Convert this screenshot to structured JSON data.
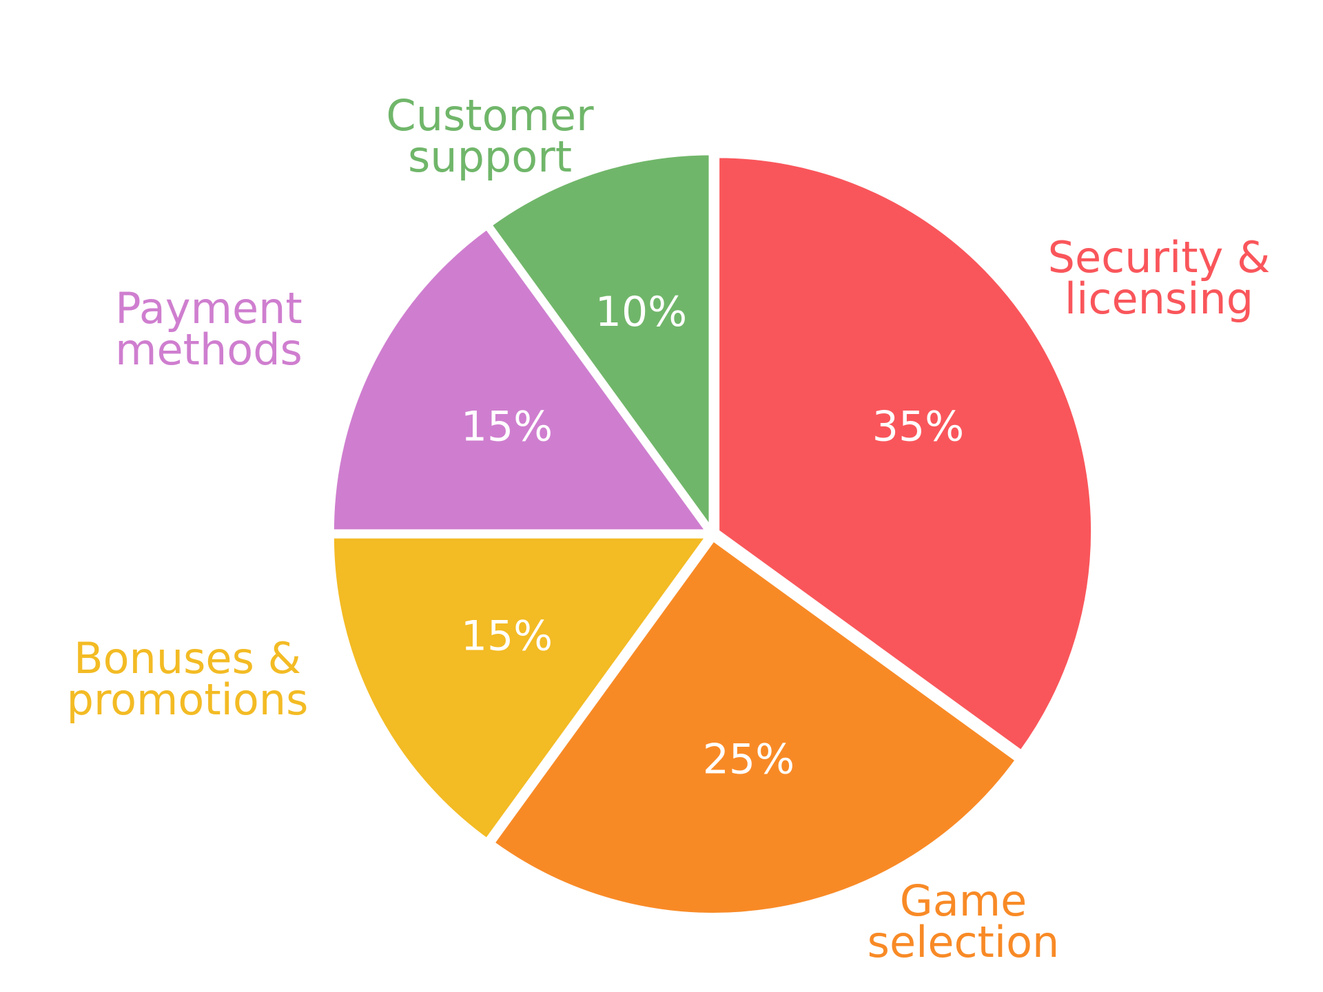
{
  "chart_data": {
    "type": "pie",
    "categories": [
      "Security & licensing",
      "Game selection",
      "Bonuses & promotions",
      "Payment methods",
      "Customer support"
    ],
    "values": [
      35,
      25,
      15,
      15,
      10
    ],
    "value_labels": [
      "35%",
      "25%",
      "15%",
      "15%",
      "10%"
    ],
    "colors": [
      "#f9565b",
      "#f88a26",
      "#f3bb24",
      "#cf7ecf",
      "#70b66a"
    ]
  }
}
